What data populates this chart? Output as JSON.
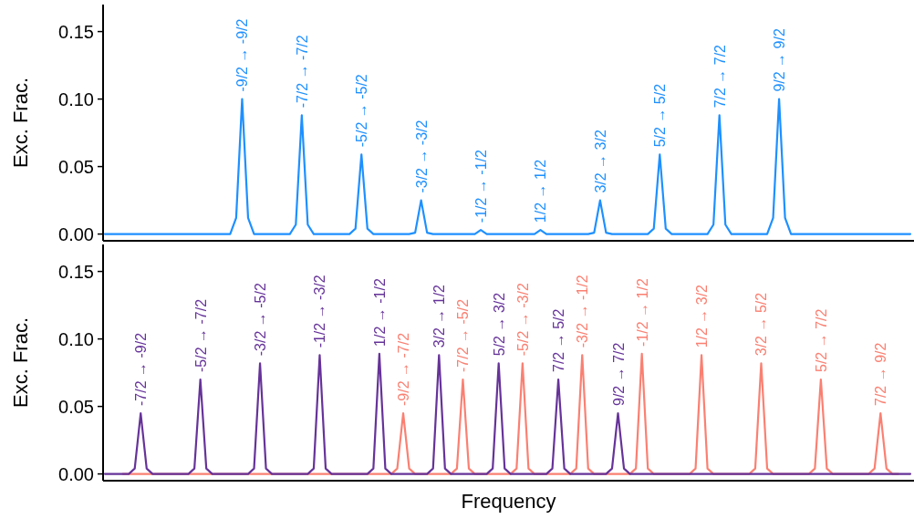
{
  "chart_data": [
    {
      "type": "line",
      "ylabel": "Exc. Frac.",
      "categories": [
        null,
        null,
        null,
        null,
        null,
        null,
        null,
        null,
        null,
        null,
        null,
        null,
        null,
        null,
        null,
        null,
        null,
        null,
        null,
        null,
        null,
        null,
        null,
        null,
        null,
        null,
        null,
        null,
        null,
        null,
        null,
        null,
        null,
        null,
        null,
        null,
        null,
        null,
        null,
        null,
        null,
        null,
        null,
        null,
        null,
        null,
        null,
        null,
        null,
        null,
        null,
        null,
        null,
        null,
        null,
        null,
        null,
        null,
        null,
        null,
        null,
        null,
        null,
        null,
        null,
        null,
        null,
        null,
        null,
        null,
        null,
        null,
        null,
        null,
        null,
        null,
        null,
        null,
        null,
        null,
        null,
        null,
        null,
        null,
        null,
        null,
        null,
        null,
        null,
        null,
        null,
        null,
        null,
        null,
        null,
        null,
        null,
        null,
        null,
        null,
        null,
        null,
        null,
        null,
        null,
        null,
        null,
        null,
        null,
        null,
        null,
        null,
        null,
        null,
        null,
        null,
        null,
        null,
        null,
        null,
        null,
        null,
        null,
        null,
        null,
        null,
        null,
        null,
        null,
        null,
        null,
        null,
        null,
        null,
        null,
        null
      ],
      "ylim": [
        -0.005,
        0.17
      ],
      "yticks": [
        {
          "value": 0,
          "label": "0.00"
        },
        {
          "value": 0.05,
          "label": "0.05"
        },
        {
          "value": 0.1,
          "label": "0.10"
        },
        {
          "value": 0.15,
          "label": "0.15"
        }
      ],
      "tick_labels": "y",
      "grid": false,
      "line_style": "solid",
      "series": [
        {
          "color": "#1e90ff",
          "values": [
            0,
            0,
            0,
            0,
            0,
            0,
            0,
            0,
            0,
            0,
            0,
            0,
            0,
            0,
            0,
            0,
            0,
            0,
            0,
            0,
            0,
            0,
            0.012,
            0.1,
            0.012,
            0,
            0,
            0,
            0,
            0,
            0,
            0,
            0.007,
            0.088,
            0.007,
            0,
            0,
            0,
            0,
            0,
            0,
            0,
            0.004,
            0.059,
            0.004,
            0,
            0,
            0,
            0,
            0,
            0,
            0,
            0.001,
            0.025,
            0.001,
            0,
            0,
            0,
            0,
            0,
            0,
            0,
            0,
            0.003,
            0,
            0,
            0,
            0,
            0,
            0,
            0,
            0,
            0,
            0.003,
            0,
            0,
            0,
            0,
            0,
            0,
            0,
            0,
            0.001,
            0.025,
            0.001,
            0,
            0,
            0,
            0,
            0,
            0,
            0,
            0.004,
            0.059,
            0.004,
            0,
            0,
            0,
            0,
            0,
            0,
            0,
            0.007,
            0.088,
            0.007,
            0,
            0,
            0,
            0,
            0,
            0,
            0,
            0.012,
            0.1,
            0.012,
            0,
            0,
            0,
            0,
            0,
            0,
            0,
            0,
            0,
            0,
            0,
            0,
            0,
            0,
            0,
            0,
            0,
            0,
            0,
            0,
            0
          ],
          "value_labels": [
            null,
            null,
            null,
            null,
            null,
            null,
            null,
            null,
            null,
            null,
            null,
            null,
            null,
            null,
            null,
            null,
            null,
            null,
            null,
            null,
            null,
            null,
            null,
            "-9/2 → -9/2",
            null,
            null,
            null,
            null,
            null,
            null,
            null,
            null,
            null,
            "-7/2 → -7/2",
            null,
            null,
            null,
            null,
            null,
            null,
            null,
            null,
            null,
            "-5/2 → -5/2",
            null,
            null,
            null,
            null,
            null,
            null,
            null,
            null,
            null,
            "-3/2 → -3/2",
            null,
            null,
            null,
            null,
            null,
            null,
            null,
            null,
            null,
            "-1/2 → -1/2",
            null,
            null,
            null,
            null,
            null,
            null,
            null,
            null,
            null,
            "1/2 → 1/2",
            null,
            null,
            null,
            null,
            null,
            null,
            null,
            null,
            null,
            "3/2 → 3/2",
            null,
            null,
            null,
            null,
            null,
            null,
            null,
            null,
            null,
            "5/2 → 5/2",
            null,
            null,
            null,
            null,
            null,
            null,
            null,
            null,
            null,
            "7/2 → 7/2",
            null,
            null,
            null,
            null,
            null,
            null,
            null,
            null,
            null,
            "9/2 → 9/2",
            null,
            null,
            null,
            null,
            null,
            null,
            null,
            null,
            null,
            null,
            null,
            null,
            null,
            null,
            null,
            null,
            null,
            null,
            null,
            null,
            null,
            null
          ]
        }
      ]
    },
    {
      "type": "line",
      "ylabel": "Exc. Frac.",
      "xlabel": "Frequency",
      "categories": [
        null,
        null,
        null,
        null,
        null,
        null,
        null,
        null,
        null,
        null,
        null,
        null,
        null,
        null,
        null,
        null,
        null,
        null,
        null,
        null,
        null,
        null,
        null,
        null,
        null,
        null,
        null,
        null,
        null,
        null,
        null,
        null,
        null,
        null,
        null,
        null,
        null,
        null,
        null,
        null,
        null,
        null,
        null,
        null,
        null,
        null,
        null,
        null,
        null,
        null,
        null,
        null,
        null,
        null,
        null,
        null,
        null,
        null,
        null,
        null,
        null,
        null,
        null,
        null,
        null,
        null,
        null,
        null,
        null,
        null,
        null,
        null,
        null,
        null,
        null,
        null,
        null,
        null,
        null,
        null,
        null,
        null,
        null,
        null,
        null,
        null,
        null,
        null,
        null,
        null,
        null,
        null,
        null,
        null,
        null,
        null,
        null,
        null,
        null,
        null,
        null,
        null,
        null,
        null,
        null,
        null,
        null,
        null,
        null,
        null,
        null,
        null,
        null,
        null,
        null,
        null,
        null,
        null,
        null,
        null,
        null,
        null,
        null,
        null,
        null,
        null,
        null,
        null,
        null,
        null,
        null,
        null,
        null,
        null,
        null,
        null
      ],
      "ylim": [
        -0.005,
        0.17
      ],
      "yticks": [
        {
          "value": 0,
          "label": "0.00"
        },
        {
          "value": 0.05,
          "label": "0.05"
        },
        {
          "value": 0.1,
          "label": "0.10"
        },
        {
          "value": 0.15,
          "label": "0.15"
        }
      ],
      "tick_labels": "y",
      "grid": false,
      "line_style": "solid",
      "series": [
        {
          "color": "#fa8072",
          "values": [
            null,
            null,
            null,
            0,
            0,
            0,
            0,
            0,
            0,
            0,
            0,
            0,
            0,
            0,
            0,
            0,
            0,
            0,
            0,
            0,
            0,
            0,
            0,
            0,
            0,
            0,
            0,
            0,
            0,
            0,
            0,
            0,
            0,
            0,
            0,
            0,
            0,
            0,
            0,
            0,
            0,
            0,
            0,
            0,
            0,
            0,
            0,
            0,
            0,
            0.004,
            0.045,
            0.004,
            0,
            0,
            0,
            0,
            0,
            0,
            0,
            0.004,
            0.07,
            0.004,
            0,
            0,
            0,
            0,
            0,
            0,
            0,
            0.004,
            0.082,
            0.004,
            0,
            0,
            0,
            0,
            0,
            0,
            0,
            0.004,
            0.088,
            0.004,
            0,
            0,
            0,
            0,
            0,
            0,
            0,
            0.004,
            0.089,
            0.004,
            0,
            0,
            0,
            0,
            0,
            0,
            0,
            0.004,
            0.088,
            0.004,
            0,
            0,
            0,
            0,
            0,
            0,
            0,
            0.004,
            0.082,
            0.004,
            0,
            0,
            0,
            0,
            0,
            0,
            0,
            0.004,
            0.07,
            0.004,
            0,
            0,
            0,
            0,
            0,
            0,
            0,
            0.004,
            0.045,
            0.004,
            0,
            0,
            null,
            null
          ],
          "value_labels": [
            null,
            null,
            null,
            null,
            null,
            null,
            null,
            null,
            null,
            null,
            null,
            null,
            null,
            null,
            null,
            null,
            null,
            null,
            null,
            null,
            null,
            null,
            null,
            null,
            null,
            null,
            null,
            null,
            null,
            null,
            null,
            null,
            null,
            null,
            null,
            null,
            null,
            null,
            null,
            null,
            null,
            null,
            null,
            null,
            null,
            null,
            null,
            null,
            null,
            null,
            "-9/2 → -7/2",
            null,
            null,
            null,
            null,
            null,
            null,
            null,
            null,
            null,
            "-7/2 → -5/2",
            null,
            null,
            null,
            null,
            null,
            null,
            null,
            null,
            null,
            "-5/2 → -3/2",
            null,
            null,
            null,
            null,
            null,
            null,
            null,
            null,
            null,
            "-3/2 → -1/2",
            null,
            null,
            null,
            null,
            null,
            null,
            null,
            null,
            null,
            "-1/2 → 1/2",
            null,
            null,
            null,
            null,
            null,
            null,
            null,
            null,
            null,
            "1/2 → 3/2",
            null,
            null,
            null,
            null,
            null,
            null,
            null,
            null,
            null,
            "3/2 → 5/2",
            null,
            null,
            null,
            null,
            null,
            null,
            null,
            null,
            null,
            "5/2 → 7/2",
            null,
            null,
            null,
            null,
            null,
            null,
            null,
            null,
            null,
            "7/2 → 9/2",
            null,
            null,
            null,
            null,
            null
          ]
        },
        {
          "color": "#663399",
          "values": [
            0,
            0,
            0,
            0,
            0,
            0.004,
            0.045,
            0.004,
            0,
            0,
            0,
            0,
            0,
            0,
            0,
            0.004,
            0.07,
            0.004,
            0,
            0,
            0,
            0,
            0,
            0,
            0,
            0.004,
            0.082,
            0.004,
            0,
            0,
            0,
            0,
            0,
            0,
            0,
            0.004,
            0.088,
            0.004,
            0,
            0,
            0,
            0,
            0,
            0,
            0,
            0.004,
            0.089,
            0.004,
            0,
            0,
            0,
            0,
            0,
            0,
            0,
            0.004,
            0.088,
            0.004,
            0,
            0,
            0,
            0,
            0,
            0,
            0,
            0.004,
            0.082,
            0.004,
            0,
            0,
            0,
            0,
            0,
            0,
            0,
            0.004,
            0.07,
            0.004,
            0,
            0,
            0,
            0,
            0,
            0,
            0,
            0.004,
            0.045,
            0.004,
            0,
            0,
            0,
            0,
            0,
            0,
            0,
            0,
            0,
            0,
            0,
            0,
            0,
            0,
            0,
            0,
            0,
            0,
            0,
            0,
            0,
            0,
            0,
            0,
            0,
            0,
            0,
            0,
            0,
            0,
            0,
            0,
            0,
            0,
            0,
            0,
            0,
            0,
            0,
            0,
            0,
            0,
            0,
            0,
            0,
            0,
            0,
            0
          ],
          "value_labels": [
            null,
            null,
            null,
            null,
            null,
            null,
            "-7/2 → -9/2",
            null,
            null,
            null,
            null,
            null,
            null,
            null,
            null,
            null,
            "-5/2 → -7/2",
            null,
            null,
            null,
            null,
            null,
            null,
            null,
            null,
            null,
            "-3/2 → -5/2",
            null,
            null,
            null,
            null,
            null,
            null,
            null,
            null,
            null,
            "-1/2 → -3/2",
            null,
            null,
            null,
            null,
            null,
            null,
            null,
            null,
            null,
            "1/2 → -1/2",
            null,
            null,
            null,
            null,
            null,
            null,
            null,
            null,
            null,
            "3/2 → 1/2",
            null,
            null,
            null,
            null,
            null,
            null,
            null,
            null,
            null,
            "5/2 → 3/2",
            null,
            null,
            null,
            null,
            null,
            null,
            null,
            null,
            null,
            "7/2 → 5/2",
            null,
            null,
            null,
            null,
            null,
            null,
            null,
            null,
            null,
            "9/2 → 7/2",
            null,
            null,
            null,
            null,
            null,
            null,
            null,
            null,
            null,
            null,
            null,
            null,
            null,
            null,
            null,
            null,
            null,
            null,
            null,
            null,
            null,
            null,
            null,
            null,
            null,
            null,
            null,
            null,
            null,
            null,
            null,
            null,
            null,
            null,
            null,
            null,
            null,
            null,
            null,
            null,
            null,
            null,
            null,
            null,
            null,
            null,
            null,
            null,
            null
          ]
        }
      ]
    }
  ]
}
